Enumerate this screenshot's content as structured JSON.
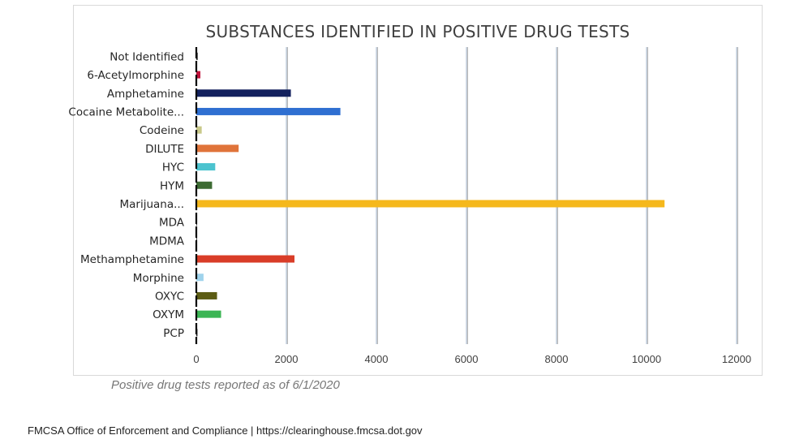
{
  "chart_data": {
    "type": "bar",
    "orientation": "horizontal",
    "title": "SUBSTANCES IDENTIFIED IN POSITIVE DRUG TESTS",
    "xlim": [
      0,
      12000
    ],
    "x_ticks": [
      "0",
      "2000",
      "4000",
      "6000",
      "8000",
      "10000",
      "12000"
    ],
    "grid": true,
    "categories": [
      "Not Identified",
      "6-Acetylmorphine",
      "Amphetamine",
      "Cocaine Metabolite...",
      "Codeine",
      "DILUTE",
      "HYC",
      "HYM",
      "Marijuana...",
      "MDA",
      "MDMA",
      "Methamphetamine",
      "Morphine",
      "OXYC",
      "OXYM",
      "PCP"
    ],
    "values": [
      30,
      90,
      2100,
      3200,
      120,
      940,
      420,
      350,
      10400,
      10,
      10,
      2180,
      160,
      460,
      550,
      25
    ],
    "colors": [
      "#1a1a1a",
      "#c0143c",
      "#13215e",
      "#2f6fd1",
      "#c9c98a",
      "#e0743a",
      "#4cc3cf",
      "#3d6b33",
      "#f5b81c",
      "#444444",
      "#444444",
      "#d93d28",
      "#9fd3ec",
      "#5c5c14",
      "#3bb554",
      "#1a1a1a"
    ]
  },
  "caption": "Positive drug tests reported as of 6/1/2020",
  "footer": "FMCSA Office of Enforcement and Compliance | https://clearinghouse.fmcsa.dot.gov"
}
